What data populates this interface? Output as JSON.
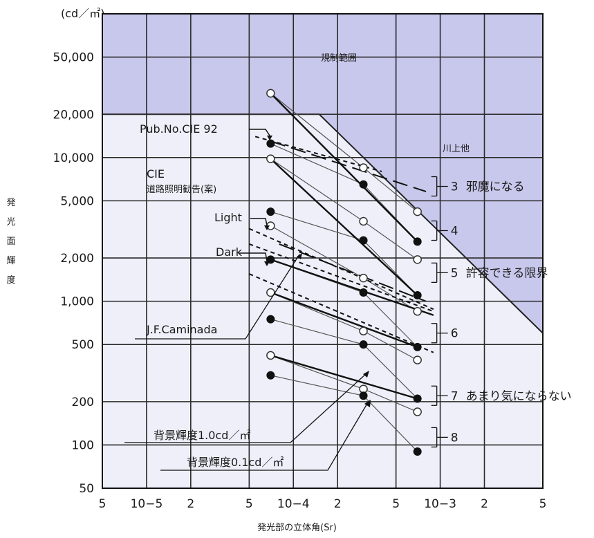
{
  "chart_data": {
    "type": "scatter",
    "x_scale": "log",
    "y_scale": "log",
    "xlim": [
      5e-06,
      0.005
    ],
    "ylim": [
      50,
      100000
    ],
    "unit_label": "(cd／㎡)",
    "ylabel_chars": [
      "発",
      "光",
      "面",
      "輝",
      "度"
    ],
    "xlabel": "発光部の立体角(Sr)",
    "x_ticks": [
      {
        "v": 5e-06,
        "label": "5"
      },
      {
        "v": 1e-05,
        "label": "10−5"
      },
      {
        "v": 2e-05,
        "label": "2"
      },
      {
        "v": 5e-05,
        "label": "5"
      },
      {
        "v": 0.0001,
        "label": "10−4"
      },
      {
        "v": 0.0002,
        "label": "2"
      },
      {
        "v": 0.0005,
        "label": "5"
      },
      {
        "v": 0.001,
        "label": "10−3"
      },
      {
        "v": 0.002,
        "label": "2"
      },
      {
        "v": 0.005,
        "label": "5"
      }
    ],
    "y_ticks": [
      {
        "v": 50,
        "label": "50"
      },
      {
        "v": 100,
        "label": "100"
      },
      {
        "v": 200,
        "label": "200"
      },
      {
        "v": 500,
        "label": "500"
      },
      {
        "v": 1000,
        "label": "1,000"
      },
      {
        "v": 2000,
        "label": "2,000"
      },
      {
        "v": 5000,
        "label": "5,000"
      },
      {
        "v": 10000,
        "label": "10,000"
      },
      {
        "v": 20000,
        "label": "20,000"
      },
      {
        "v": 50000,
        "label": "50,000"
      }
    ],
    "grid": true,
    "regulated_region": {
      "label": "規制範囲",
      "boundary": [
        [
          5e-06,
          20000
        ],
        [
          0.00015,
          20000
        ],
        [
          0.005,
          600
        ]
      ],
      "color": "#c8c8ec"
    },
    "cie_label": "CIE",
    "cie_sublabel": "道路照明勧告(案)",
    "kawakami_label": "川上他",
    "series": [
      {
        "name": "背景輝度1.0cd／㎡",
        "marker": "open",
        "x": [
          7e-05,
          0.0003,
          0.0007
        ],
        "y": [
          28000,
          8500,
          4200
        ]
      },
      {
        "name": "背景輝度0.1cd／㎡",
        "marker": "filled",
        "x": [
          7e-05,
          0.0003,
          0.0007
        ],
        "y": [
          12500,
          6500,
          2600
        ]
      }
    ],
    "open_points": [
      [
        7e-05,
        28000
      ],
      [
        0.0003,
        8500
      ],
      [
        0.0007,
        4200
      ],
      [
        7e-05,
        9800
      ],
      [
        0.0003,
        3600
      ],
      [
        0.0007,
        1950
      ],
      [
        7e-05,
        3350
      ],
      [
        0.0003,
        1450
      ],
      [
        0.0007,
        850
      ],
      [
        7e-05,
        1150
      ],
      [
        0.0003,
        620
      ],
      [
        0.0007,
        390
      ],
      [
        7e-05,
        420
      ],
      [
        0.0003,
        245
      ],
      [
        0.0007,
        170
      ]
    ],
    "filled_points": [
      [
        7e-05,
        12500
      ],
      [
        0.0003,
        6500
      ],
      [
        0.0007,
        2600
      ],
      [
        7e-05,
        4200
      ],
      [
        0.0003,
        2650
      ],
      [
        0.0007,
        1100
      ],
      [
        7e-05,
        1950
      ],
      [
        0.0003,
        1150
      ],
      [
        0.0007,
        480
      ],
      [
        7e-05,
        750
      ],
      [
        0.0003,
        500
      ],
      [
        0.0007,
        210
      ],
      [
        7e-05,
        305
      ],
      [
        0.0003,
        220
      ],
      [
        0.0007,
        90
      ]
    ],
    "thin_lines": [
      [
        [
          7e-05,
          28000
        ],
        [
          0.0003,
          8500
        ],
        [
          0.0007,
          4200
        ]
      ],
      [
        [
          7e-05,
          9800
        ],
        [
          0.0003,
          3600
        ],
        [
          0.0007,
          1950
        ]
      ],
      [
        [
          7e-05,
          3350
        ],
        [
          0.0003,
          1450
        ],
        [
          0.0007,
          850
        ]
      ],
      [
        [
          7e-05,
          1150
        ],
        [
          0.0003,
          620
        ],
        [
          0.0007,
          390
        ]
      ],
      [
        [
          7e-05,
          420
        ],
        [
          0.0003,
          245
        ],
        [
          0.0007,
          170
        ]
      ],
      [
        [
          7e-05,
          12500
        ],
        [
          0.0003,
          6500
        ],
        [
          0.0007,
          2600
        ]
      ],
      [
        [
          7e-05,
          4200
        ],
        [
          0.0003,
          2650
        ],
        [
          0.0007,
          1100
        ]
      ],
      [
        [
          7e-05,
          1950
        ],
        [
          0.0003,
          1150
        ],
        [
          0.0007,
          480
        ]
      ],
      [
        [
          7e-05,
          750
        ],
        [
          0.0003,
          500
        ],
        [
          0.0007,
          210
        ]
      ],
      [
        [
          7e-05,
          305
        ],
        [
          0.0003,
          220
        ],
        [
          0.0007,
          90
        ]
      ]
    ],
    "bold_lines": [
      [
        [
          7e-05,
          28000
        ],
        [
          0.0007,
          2600
        ]
      ],
      [
        [
          7e-05,
          9800
        ],
        [
          0.0007,
          1100
        ]
      ],
      [
        [
          7e-05,
          1950
        ],
        [
          0.0009,
          800
        ]
      ],
      [
        [
          7e-05,
          1150
        ],
        [
          0.0007,
          480
        ]
      ],
      [
        [
          7e-05,
          420
        ],
        [
          0.0007,
          210
        ]
      ]
    ],
    "dashed_lines": [
      [
        [
          5.5e-05,
          14000
        ],
        [
          0.0004,
          8000
        ]
      ],
      [
        [
          5e-05,
          3200
        ],
        [
          0.0009,
          880
        ]
      ],
      [
        [
          5e-05,
          2500
        ],
        [
          0.0009,
          850
        ]
      ],
      [
        [
          5e-05,
          1550
        ],
        [
          0.0009,
          440
        ]
      ]
    ],
    "long_dash_lines": [
      [
        [
          7e-05,
          13000
        ],
        [
          0.0008,
          5800
        ]
      ],
      [
        [
          8e-05,
          2500
        ],
        [
          0.0008,
          1000
        ]
      ]
    ],
    "annotations": [
      {
        "id": "pub",
        "text": "Pub.No.CIE 92"
      },
      {
        "id": "light",
        "text": "Light"
      },
      {
        "id": "dark",
        "text": "Dark"
      },
      {
        "id": "caminada",
        "text": "J.F.Caminada"
      },
      {
        "id": "bg10",
        "text": "背景輝度1.0cd／㎡"
      },
      {
        "id": "bg01",
        "text": "背景輝度0.1cd／㎡"
      }
    ],
    "groups": [
      {
        "num": "3",
        "text": "邪魔になる",
        "y": 6300
      },
      {
        "num": "4",
        "text": "",
        "y": 3100
      },
      {
        "num": "5",
        "text": "許容できる限界",
        "y": 1580
      },
      {
        "num": "6",
        "text": "",
        "y": 600
      },
      {
        "num": "7",
        "text": "あまり気にならない",
        "y": 220
      },
      {
        "num": "8",
        "text": "",
        "y": 113
      }
    ]
  }
}
